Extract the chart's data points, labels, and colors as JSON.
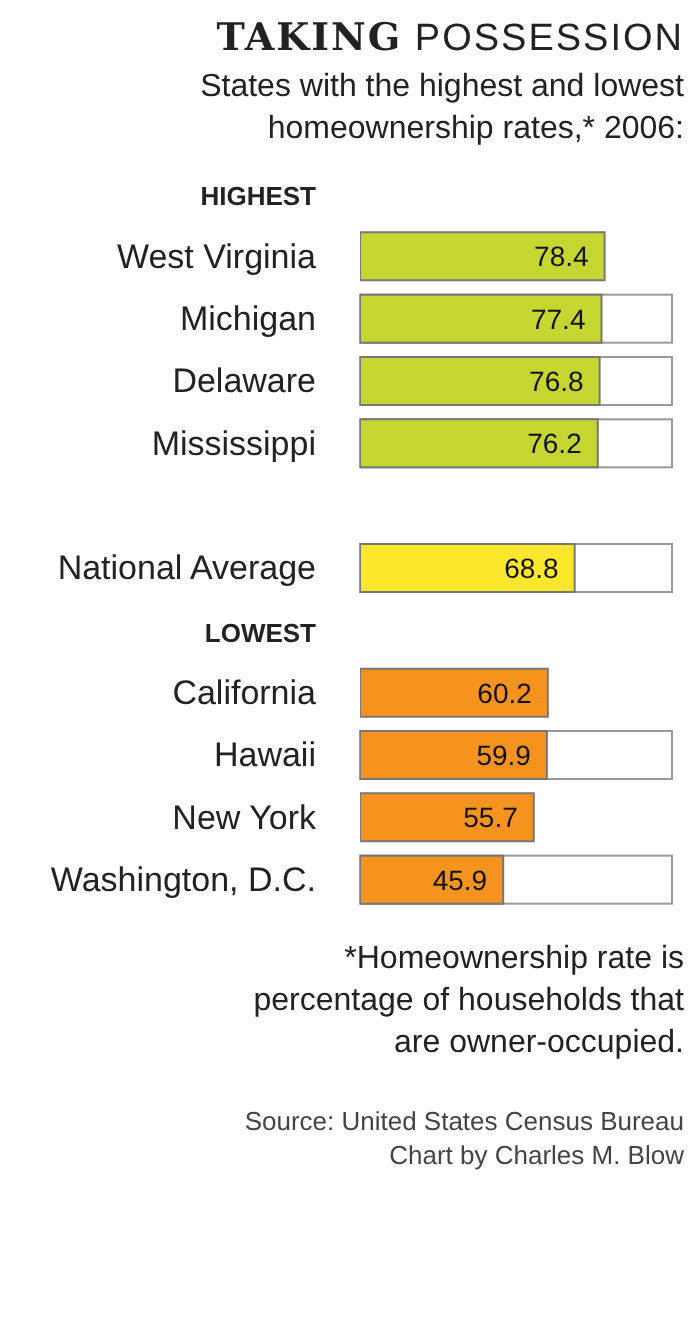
{
  "chart_data": {
    "type": "bar",
    "orientation": "horizontal",
    "title": "TAKING POSSESSION",
    "subtitle": "States with the highest and lowest homeownership rates,* 2006:",
    "categories": [
      "HIGHEST",
      "West Virginia",
      "Michigan",
      "Delaware",
      "Mississippi",
      null,
      "National Average",
      "LOWEST",
      "California",
      "Hawaii",
      "New York",
      "Washington, D.C."
    ],
    "values": [
      null,
      78.4,
      77.4,
      76.8,
      76.2,
      null,
      68.8,
      null,
      60.2,
      59.9,
      55.7,
      45.9
    ],
    "colors": [
      null,
      "#c6d630",
      "#c6d630",
      "#c6d630",
      "#c6d630",
      null,
      "#fde72a",
      null,
      "#f6921e",
      "#f6921e",
      "#f6921e",
      "#f6921e"
    ],
    "xlim": [
      0,
      100
    ],
    "tick_labels": "y",
    "data_labels": true,
    "grid": false,
    "legend": false,
    "annotations": [
      "*Homeownership rate is percentage of households that are owner-occupied.",
      "Source: United States Census Bureau",
      "Chart by Charles M. Blow"
    ]
  }
}
